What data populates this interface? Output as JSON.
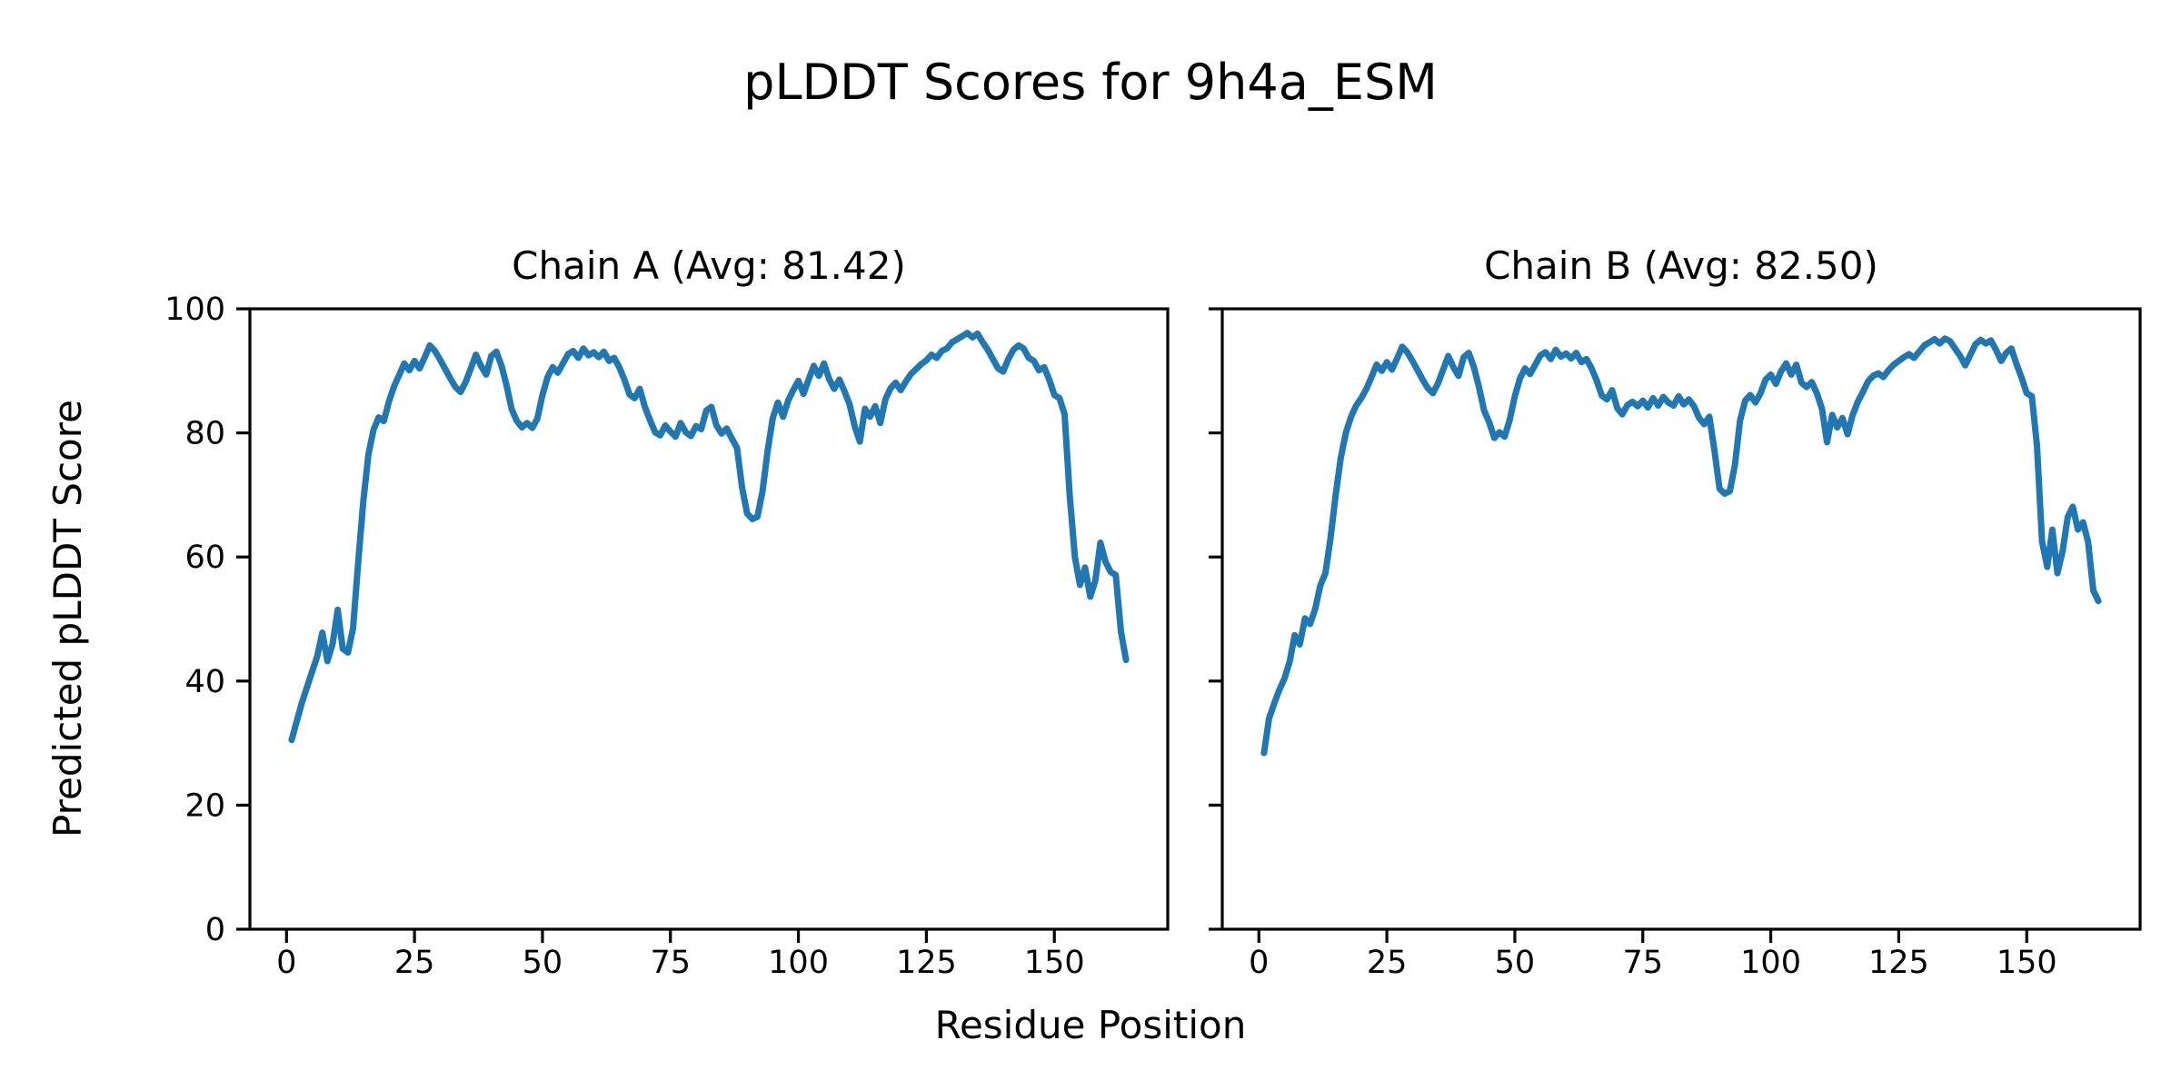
{
  "figure": {
    "suptitle": "pLDDT Scores for 9h4a_ESM",
    "xlabel": "Residue Position",
    "ylabel": "Predicted pLDDT Score",
    "background": "#ffffff",
    "line_color": "#1f77b4",
    "axis_color": "#000000"
  },
  "chart_data": [
    {
      "type": "line",
      "title": "Chain A (Avg: 81.42)",
      "avg": 81.42,
      "xlabel": "Residue Position",
      "ylabel": "Predicted pLDDT Score",
      "xlim": [
        -7.15,
        172.15
      ],
      "ylim": [
        0,
        100
      ],
      "xticks": [
        0,
        25,
        50,
        75,
        100,
        125,
        150
      ],
      "yticks": [
        0,
        20,
        40,
        60,
        80,
        100
      ],
      "x_start": 1,
      "show_yticklabels": true,
      "grid": false,
      "legend": false,
      "series": [
        {
          "name": "pLDDT",
          "color": "#1f77b4",
          "values": [
            30.5,
            33.5,
            36.5,
            39.0,
            41.5,
            44.0,
            47.8,
            43.2,
            46.0,
            51.5,
            45.2,
            44.6,
            48.5,
            59.0,
            69.0,
            76.5,
            80.5,
            82.5,
            81.9,
            85.0,
            87.5,
            89.3,
            91.2,
            90.1,
            91.6,
            90.4,
            92.2,
            94.1,
            93.2,
            91.8,
            90.3,
            88.8,
            87.4,
            86.6,
            88.2,
            90.4,
            92.6,
            90.8,
            89.4,
            92.4,
            93.1,
            90.8,
            87.6,
            83.8,
            81.9,
            80.9,
            81.6,
            80.8,
            82.3,
            86.1,
            89.0,
            90.6,
            89.7,
            91.2,
            92.7,
            93.2,
            92.1,
            93.6,
            92.5,
            93.0,
            92.2,
            93.1,
            91.6,
            92.1,
            90.6,
            88.6,
            86.2,
            85.6,
            87.1,
            84.2,
            82.1,
            80.1,
            79.6,
            81.2,
            80.2,
            79.4,
            81.6,
            80.1,
            79.5,
            81.1,
            80.6,
            83.6,
            84.2,
            81.2,
            79.9,
            80.7,
            79.1,
            77.6,
            71.2,
            67.0,
            66.1,
            66.5,
            70.6,
            77.2,
            82.4,
            84.9,
            82.6,
            85.2,
            86.9,
            88.4,
            86.3,
            88.6,
            90.8,
            89.2,
            91.2,
            88.7,
            87.1,
            88.6,
            86.7,
            84.6,
            81.1,
            78.6,
            83.9,
            82.6,
            84.3,
            81.6,
            85.4,
            87.2,
            88.1,
            86.9,
            88.3,
            89.5,
            90.3,
            91.1,
            91.7,
            92.6,
            92.1,
            93.2,
            93.6,
            94.6,
            95.1,
            95.6,
            96.1,
            95.4,
            96.0,
            94.6,
            93.4,
            91.9,
            90.4,
            89.9,
            91.9,
            93.4,
            94.1,
            93.6,
            92.1,
            91.6,
            90.1,
            90.6,
            88.6,
            86.1,
            85.6,
            83.0,
            70.0,
            60.0,
            55.5,
            58.3,
            53.6,
            56.2,
            62.3,
            59.2,
            57.6,
            57.1,
            48.0,
            43.4
          ]
        }
      ]
    },
    {
      "type": "line",
      "title": "Chain B (Avg: 82.50)",
      "avg": 82.5,
      "xlabel": "Residue Position",
      "ylabel": "Predicted pLDDT Score",
      "xlim": [
        -7.15,
        172.15
      ],
      "ylim": [
        0,
        100
      ],
      "xticks": [
        0,
        25,
        50,
        75,
        100,
        125,
        150
      ],
      "yticks": [
        0,
        20,
        40,
        60,
        80,
        100
      ],
      "x_start": 1,
      "show_yticklabels": false,
      "grid": false,
      "legend": false,
      "series": [
        {
          "name": "pLDDT",
          "color": "#1f77b4",
          "values": [
            28.4,
            34.0,
            36.4,
            38.6,
            40.4,
            43.1,
            47.4,
            45.9,
            50.1,
            49.2,
            51.6,
            55.4,
            57.4,
            63.0,
            70.0,
            76.0,
            80.0,
            82.6,
            84.4,
            85.6,
            87.1,
            89.0,
            91.0,
            90.0,
            91.4,
            90.2,
            92.0,
            93.9,
            93.0,
            91.6,
            90.1,
            88.6,
            87.2,
            86.4,
            88.0,
            90.2,
            92.4,
            90.6,
            89.2,
            92.2,
            92.9,
            90.6,
            87.4,
            83.6,
            81.7,
            79.2,
            80.1,
            79.4,
            82.1,
            85.9,
            88.8,
            90.4,
            89.5,
            91.0,
            92.5,
            93.0,
            91.9,
            93.4,
            92.3,
            92.8,
            92.0,
            92.9,
            91.4,
            91.9,
            90.4,
            88.4,
            86.0,
            85.4,
            86.9,
            84.0,
            83.0,
            84.5,
            85.0,
            84.3,
            85.2,
            84.1,
            85.6,
            84.4,
            85.8,
            84.9,
            84.4,
            85.9,
            84.6,
            85.4,
            84.3,
            82.4,
            81.4,
            82.6,
            77.2,
            71.0,
            70.2,
            70.6,
            74.8,
            82.0,
            85.2,
            86.1,
            84.9,
            86.4,
            88.6,
            89.4,
            87.9,
            89.9,
            91.2,
            89.4,
            91.0,
            88.1,
            87.4,
            88.2,
            86.4,
            83.9,
            78.5,
            82.9,
            80.9,
            82.4,
            79.8,
            82.9,
            85.0,
            86.6,
            88.3,
            89.2,
            89.6,
            89.0,
            90.1,
            91.0,
            91.6,
            92.2,
            92.7,
            92.1,
            93.1,
            94.1,
            94.6,
            95.1,
            94.4,
            95.2,
            94.8,
            93.6,
            92.4,
            90.9,
            92.6,
            94.3,
            95.0,
            94.4,
            94.9,
            93.4,
            91.6,
            92.9,
            93.6,
            91.1,
            88.9,
            86.4,
            85.9,
            78.0,
            62.5,
            58.4,
            64.4,
            57.4,
            60.9,
            66.4,
            68.1,
            64.4,
            65.6,
            62.4,
            54.6,
            52.9
          ]
        }
      ]
    }
  ]
}
